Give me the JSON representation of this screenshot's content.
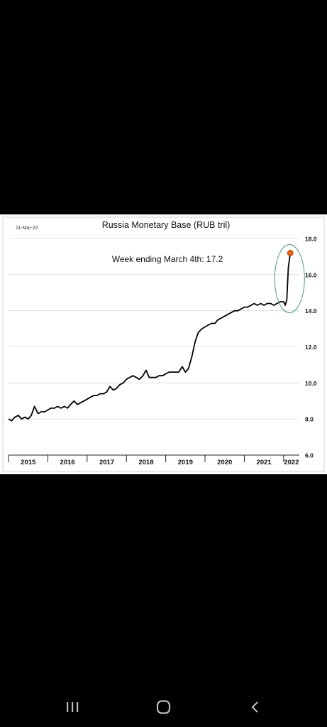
{
  "chart_data": {
    "type": "line",
    "title": "Russia Monetary Base (RUB tril)",
    "date_label": "11-Mar-22",
    "annotation": "Week ending March 4th:  17.2",
    "ylim": [
      6.0,
      18.0
    ],
    "y_ticks": [
      "6.0",
      "8.0",
      "10.0",
      "12.0",
      "14.0",
      "16.0",
      "18.0"
    ],
    "x_ticks": [
      "2015",
      "2016",
      "2017",
      "2018",
      "2019",
      "2020",
      "2021",
      "2022"
    ],
    "xlim": [
      2015.0,
      2022.4
    ],
    "grid": true,
    "y_axis_side": "right",
    "line_color": "#000000",
    "highlight_color": "#e8611a",
    "ellipse_color": "#4e9c6e",
    "series": [
      {
        "x": [
          2015.0,
          2015.08,
          2015.16,
          2015.25,
          2015.33,
          2015.42,
          2015.5,
          2015.58,
          2015.66,
          2015.75,
          2015.83,
          2015.92,
          2016.0,
          2016.08,
          2016.17,
          2016.25,
          2016.33,
          2016.42,
          2016.5,
          2016.58,
          2016.67,
          2016.75,
          2016.83,
          2016.92,
          2017.0,
          2017.08,
          2017.17,
          2017.25,
          2017.33,
          2017.42,
          2017.5,
          2017.58,
          2017.67,
          2017.75,
          2017.83,
          2017.92,
          2018.0,
          2018.08,
          2018.17,
          2018.25,
          2018.33,
          2018.42,
          2018.5,
          2018.58,
          2018.67,
          2018.75,
          2018.83,
          2018.92,
          2019.0,
          2019.08,
          2019.17,
          2019.25,
          2019.33,
          2019.42,
          2019.5,
          2019.58,
          2019.67,
          2019.75,
          2019.83,
          2019.92,
          2020.0,
          2020.08,
          2020.17,
          2020.25,
          2020.33,
          2020.42,
          2020.5,
          2020.58,
          2020.67,
          2020.75,
          2020.83,
          2020.92,
          2021.0,
          2021.08,
          2021.17,
          2021.25,
          2021.33,
          2021.42,
          2021.5,
          2021.58,
          2021.67,
          2021.75,
          2021.83,
          2021.92,
          2022.0,
          2022.04,
          2022.08,
          2022.12,
          2022.17
        ],
        "values": [
          8.0,
          7.9,
          8.1,
          8.2,
          8.0,
          8.1,
          8.0,
          8.2,
          8.7,
          8.3,
          8.4,
          8.4,
          8.5,
          8.6,
          8.6,
          8.7,
          8.6,
          8.7,
          8.6,
          8.8,
          9.0,
          8.8,
          8.9,
          9.0,
          9.1,
          9.2,
          9.3,
          9.3,
          9.4,
          9.4,
          9.5,
          9.8,
          9.6,
          9.7,
          9.9,
          10.0,
          10.2,
          10.3,
          10.4,
          10.3,
          10.2,
          10.4,
          10.7,
          10.3,
          10.3,
          10.3,
          10.4,
          10.4,
          10.5,
          10.6,
          10.6,
          10.6,
          10.6,
          10.9,
          10.6,
          10.8,
          11.5,
          12.3,
          12.8,
          13.0,
          13.1,
          13.2,
          13.3,
          13.3,
          13.5,
          13.6,
          13.7,
          13.8,
          13.9,
          14.0,
          14.0,
          14.1,
          14.2,
          14.2,
          14.3,
          14.4,
          14.3,
          14.4,
          14.3,
          14.4,
          14.4,
          14.3,
          14.4,
          14.5,
          14.5,
          14.3,
          14.6,
          16.4,
          17.2
        ]
      }
    ]
  },
  "nav": {
    "recents_icon": "recent-apps-icon",
    "home_icon": "home-icon",
    "back_icon": "back-icon"
  }
}
